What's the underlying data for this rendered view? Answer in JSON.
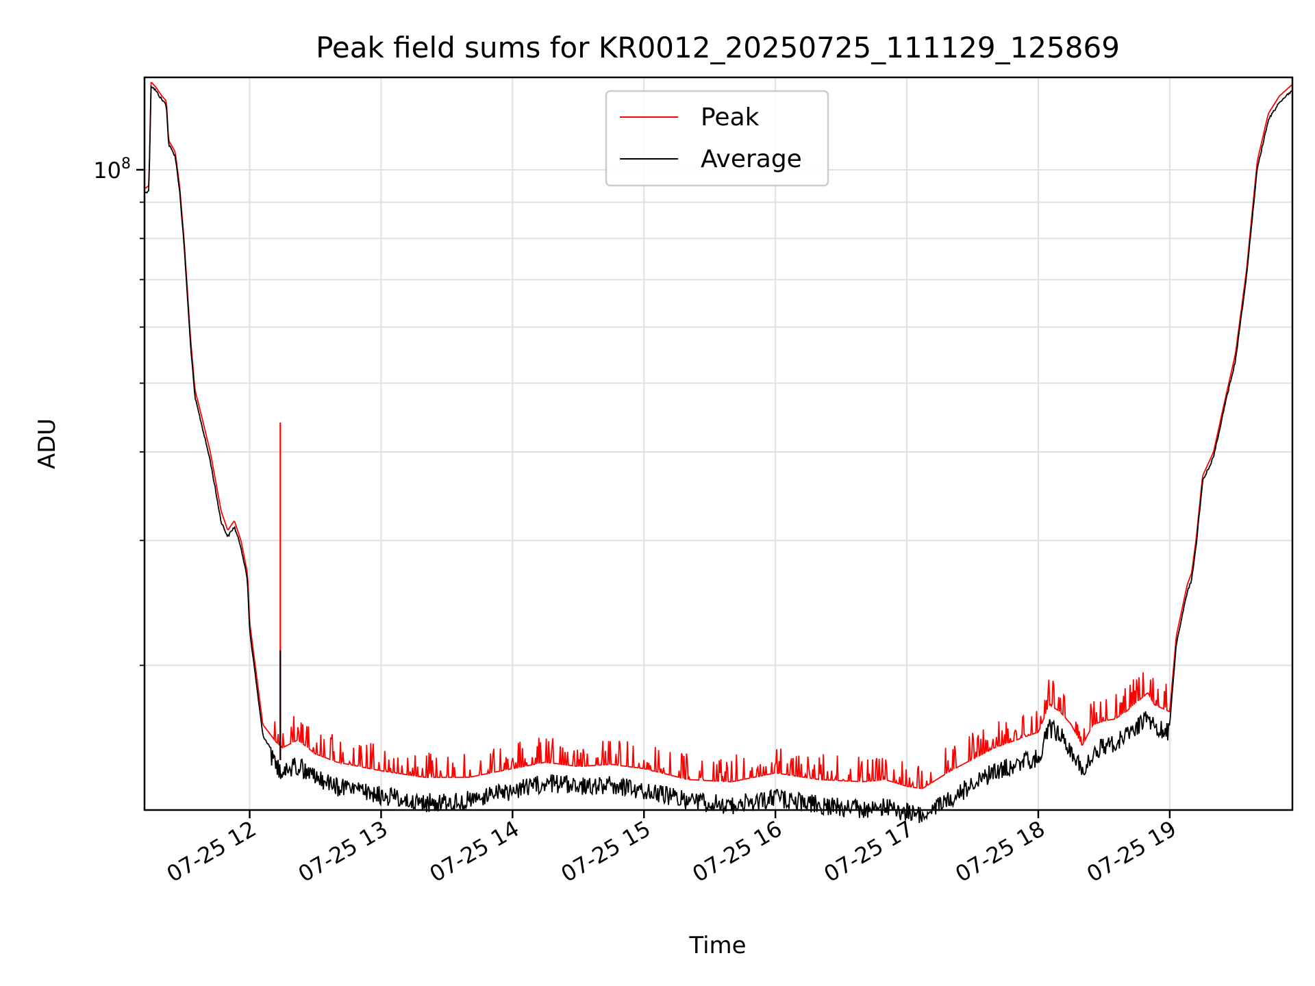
{
  "chart_data": {
    "type": "line",
    "title": "Peak field sums for KR0012_20250725_111129_125869",
    "xlabel": "Time",
    "ylabel": "ADU",
    "yscale": "log",
    "xlim": [
      "2025-07-25 11:12",
      "2025-07-25 19:56"
    ],
    "ylim": [
      12500000,
      135000000
    ],
    "grid": true,
    "legend_position": "top-center",
    "x_ticks": [
      "07-25 12",
      "07-25 13",
      "07-25 14",
      "07-25 15",
      "07-25 16",
      "07-25 17",
      "07-25 18",
      "07-25 19"
    ],
    "y_tick_major": "10^8",
    "y_tick_major_value": 100000000,
    "y_tick_minor_values": [
      20000000,
      30000000,
      40000000,
      50000000,
      60000000,
      70000000,
      80000000,
      90000000
    ],
    "series": [
      {
        "name": "Peak",
        "color": "#ff0000",
        "x": [
          "11:12",
          "11:14",
          "11:15",
          "11:17",
          "11:20",
          "11:22",
          "11:23",
          "11:26",
          "11:28",
          "11:30",
          "11:33",
          "11:35",
          "11:38",
          "11:42",
          "11:47",
          "11:50",
          "11:53",
          "11:56",
          "11:59",
          "12:00",
          "12:03",
          "12:06",
          "12:12",
          "12:15",
          "12:22",
          "12:30",
          "12:40",
          "12:50",
          "13:00",
          "13:20",
          "13:40",
          "14:00",
          "14:15",
          "14:30",
          "14:45",
          "15:00",
          "15:20",
          "15:40",
          "16:00",
          "16:20",
          "16:40",
          "16:50",
          "17:00",
          "17:07",
          "17:20",
          "17:40",
          "18:00",
          "18:05",
          "18:10",
          "18:15",
          "18:20",
          "18:25",
          "18:30",
          "18:35",
          "18:40",
          "18:50",
          "18:53",
          "19:00",
          "19:03",
          "19:08",
          "19:10",
          "19:12",
          "19:15",
          "19:20",
          "19:25",
          "19:30",
          "19:35",
          "19:40",
          "19:45",
          "19:50",
          "19:56"
        ],
        "y": [
          94000000,
          95000000,
          133000000,
          131000000,
          127000000,
          125000000,
          110000000,
          106000000,
          95000000,
          80000000,
          58000000,
          49000000,
          45000000,
          40000000,
          33000000,
          31000000,
          32000000,
          30000000,
          27000000,
          23000000,
          19500000,
          16500000,
          15600000,
          15300000,
          15700000,
          15000000,
          14600000,
          14400000,
          14200000,
          13900000,
          13900000,
          14300000,
          14600000,
          14400000,
          14500000,
          14300000,
          13800000,
          13700000,
          14100000,
          13800000,
          13700000,
          13800000,
          13500000,
          13400000,
          14200000,
          15300000,
          16100000,
          17600000,
          17200000,
          16500000,
          15400000,
          16500000,
          16700000,
          16800000,
          17200000,
          18300000,
          17600000,
          17200000,
          22000000,
          26000000,
          27000000,
          30000000,
          37000000,
          40000000,
          47000000,
          55000000,
          72000000,
          103000000,
          120000000,
          127000000,
          132000000
        ]
      },
      {
        "name": "Average",
        "color": "#000000",
        "x": [
          "11:12",
          "11:14",
          "11:15",
          "11:17",
          "11:20",
          "11:22",
          "11:23",
          "11:26",
          "11:28",
          "11:30",
          "11:33",
          "11:35",
          "11:38",
          "11:42",
          "11:47",
          "11:50",
          "11:53",
          "11:56",
          "11:59",
          "12:00",
          "12:03",
          "12:06",
          "12:12",
          "12:15",
          "12:22",
          "12:30",
          "12:40",
          "12:50",
          "13:00",
          "13:20",
          "13:40",
          "14:00",
          "14:15",
          "14:30",
          "14:45",
          "15:00",
          "15:20",
          "15:40",
          "16:00",
          "16:20",
          "16:40",
          "16:50",
          "17:00",
          "17:07",
          "17:20",
          "17:40",
          "18:00",
          "18:05",
          "18:10",
          "18:15",
          "18:20",
          "18:25",
          "18:30",
          "18:35",
          "18:40",
          "18:50",
          "18:53",
          "19:00",
          "19:03",
          "19:08",
          "19:10",
          "19:12",
          "19:15",
          "19:20",
          "19:25",
          "19:30",
          "19:35",
          "19:40",
          "19:45",
          "19:50",
          "19:56"
        ],
        "y": [
          93000000,
          94000000,
          132000000,
          130000000,
          126000000,
          124000000,
          109000000,
          105000000,
          94000000,
          79000000,
          57000000,
          48000000,
          44000000,
          39000000,
          32000000,
          30500000,
          31500000,
          29500000,
          26500000,
          22500000,
          19000000,
          16000000,
          14900000,
          14600000,
          14900000,
          14300000,
          13900000,
          13700000,
          13500000,
          13200000,
          13300000,
          13700000,
          14100000,
          13900000,
          14000000,
          13700000,
          13300000,
          13100000,
          13400000,
          13100000,
          12900000,
          13000000,
          12800000,
          12700000,
          13400000,
          14600000,
          15300000,
          16800000,
          16500000,
          15700000,
          14700000,
          15600000,
          15900000,
          16000000,
          16400000,
          17400000,
          16800000,
          16600000,
          21500000,
          25500000,
          26500000,
          29500000,
          36500000,
          39500000,
          46500000,
          54000000,
          71000000,
          101000000,
          118000000,
          125000000,
          130000000
        ]
      }
    ],
    "spikes": [
      {
        "time": "12:14",
        "peak": 44000000,
        "average": 21000000
      }
    ]
  }
}
